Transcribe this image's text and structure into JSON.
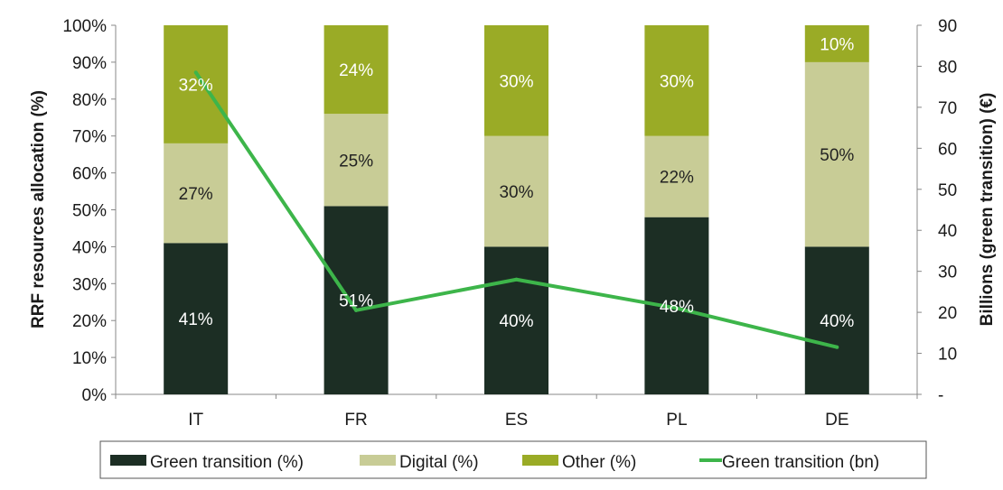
{
  "chart_data": {
    "type": "bar",
    "stacked": true,
    "categories": [
      "IT",
      "FR",
      "ES",
      "PL",
      "DE"
    ],
    "series": [
      {
        "name": "Green transition (%)",
        "type": "bar",
        "axis": "left",
        "color": "#1c2e24",
        "values": [
          41,
          51,
          40,
          48,
          40
        ],
        "labels": [
          "41%",
          "51%",
          "40%",
          "48%",
          "40%"
        ],
        "label_color": "#ffffff"
      },
      {
        "name": "Digital (%)",
        "type": "bar",
        "axis": "left",
        "color": "#c8cc96",
        "values": [
          27,
          25,
          30,
          22,
          50
        ],
        "labels": [
          "27%",
          "25%",
          "30%",
          "22%",
          "50%"
        ],
        "label_color": "#222222"
      },
      {
        "name": "Other (%)",
        "type": "bar",
        "axis": "left",
        "color": "#9aab26",
        "values": [
          32,
          24,
          30,
          30,
          10
        ],
        "labels": [
          "32%",
          "24%",
          "30%",
          "30%",
          "10%"
        ],
        "label_color": "#ffffff"
      },
      {
        "name": "Green transition (bn)",
        "type": "line",
        "axis": "right",
        "color": "#3db54a",
        "values": [
          78.5,
          20.5,
          28,
          21,
          11.5
        ]
      }
    ],
    "ylabel": "RRF resources allocation (%)",
    "y2label": "Billions (green transition) (€)",
    "ylim": [
      0,
      100
    ],
    "y2lim": [
      0,
      90
    ],
    "yticks": [
      "0%",
      "10%",
      "20%",
      "30%",
      "40%",
      "50%",
      "60%",
      "70%",
      "80%",
      "90%",
      "100%"
    ],
    "y2ticks": [
      "-",
      "10",
      "20",
      "30",
      "40",
      "50",
      "60",
      "70",
      "80",
      "90"
    ],
    "legend_position": "bottom",
    "grid": false
  }
}
